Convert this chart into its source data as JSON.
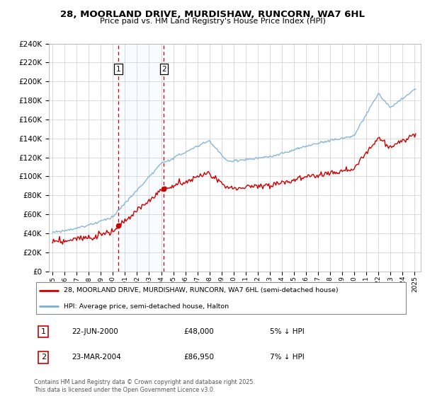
{
  "title_line1": "28, MOORLAND DRIVE, MURDISHAW, RUNCORN, WA7 6HL",
  "title_line2": "Price paid vs. HM Land Registry's House Price Index (HPI)",
  "legend_label_red": "28, MOORLAND DRIVE, MURDISHAW, RUNCORN, WA7 6HL (semi-detached house)",
  "legend_label_blue": "HPI: Average price, semi-detached house, Halton",
  "annotation1_date": "22-JUN-2000",
  "annotation1_price": "£48,000",
  "annotation1_note": "5% ↓ HPI",
  "annotation2_date": "23-MAR-2004",
  "annotation2_price": "£86,950",
  "annotation2_note": "7% ↓ HPI",
  "footer": "Contains HM Land Registry data © Crown copyright and database right 2025.\nThis data is licensed under the Open Government Licence v3.0.",
  "sale1_year": 2000.47,
  "sale1_price": 48000,
  "sale2_year": 2004.23,
  "sale2_price": 86950,
  "color_red": "#cc0000",
  "color_blue": "#7bafd4",
  "color_vline": "#cc0000",
  "color_shade": "#ddeeff",
  "ylim_min": 0,
  "ylim_max": 240000,
  "ytick_step": 20000,
  "background_color": "#ffffff"
}
